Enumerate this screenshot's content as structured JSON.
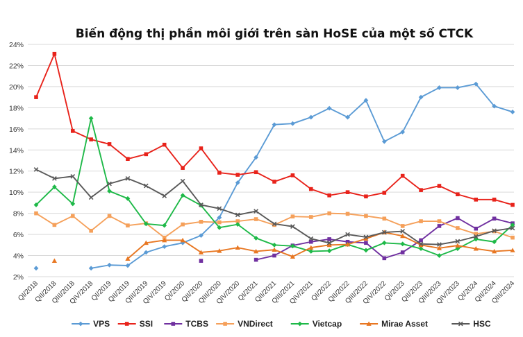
{
  "chart_data": {
    "type": "line",
    "title": "Biến động thị phần môi giới trên sàn HoSE của một số CTCK",
    "xlabel": "",
    "ylabel": "",
    "ylim": [
      2,
      24
    ],
    "yticks": [
      "2%",
      "4%",
      "6%",
      "8%",
      "10%",
      "12%",
      "14%",
      "16%",
      "18%",
      "20%",
      "22%",
      "24%"
    ],
    "grid": "horizontal",
    "legend_position": "bottom",
    "categories": [
      "QI/2018",
      "QII/2018",
      "QIII/2018",
      "QIV/2018",
      "QI/2019",
      "QII/2019",
      "QIII/2019",
      "QIV/2019",
      "QI/2020",
      "QII/2020",
      "QIII/2020",
      "QIV/2020",
      "QI/2021",
      "QII/2021",
      "QIII/2021",
      "QIV/2021",
      "QI/2022",
      "QII/2022",
      "QIII/2022",
      "QIV/2022",
      "QI/2023",
      "QII/2023",
      "QIII/2023",
      "QIV/2023",
      "QI/2024",
      "QII/2024",
      "QIII/2024"
    ],
    "series": [
      {
        "name": "VPS",
        "color": "#5B9BD5",
        "marker": "diamond",
        "values": [
          2.8,
          null,
          null,
          2.8,
          3.1,
          3.05,
          4.3,
          4.85,
          5.2,
          5.9,
          7.6,
          10.9,
          13.3,
          16.4,
          16.5,
          17.1,
          17.95,
          17.1,
          18.7,
          14.8,
          15.7,
          19.0,
          19.9,
          19.9,
          20.25,
          18.15,
          17.6
        ]
      },
      {
        "name": "SSI",
        "color": "#E8231B",
        "marker": "square",
        "values": [
          19.0,
          23.1,
          15.8,
          15.0,
          14.55,
          13.15,
          13.6,
          14.5,
          12.3,
          14.15,
          11.85,
          11.65,
          11.9,
          11.0,
          11.6,
          10.3,
          9.7,
          10.0,
          9.6,
          9.95,
          11.55,
          10.2,
          10.6,
          9.8,
          9.3,
          9.3,
          8.8
        ]
      },
      {
        "name": "TCBS",
        "color": "#7030A0",
        "marker": "square",
        "values": [
          null,
          null,
          null,
          null,
          null,
          null,
          null,
          null,
          null,
          3.5,
          null,
          null,
          3.6,
          4.0,
          4.95,
          5.3,
          5.55,
          5.3,
          5.2,
          3.75,
          4.3,
          5.45,
          6.8,
          7.55,
          6.55,
          7.5,
          7.05
        ]
      },
      {
        "name": "VNDirect",
        "color": "#F5A05A",
        "marker": "square",
        "values": [
          8.0,
          6.9,
          7.75,
          6.35,
          7.75,
          6.85,
          7.05,
          5.7,
          6.95,
          7.2,
          7.15,
          7.25,
          7.45,
          6.9,
          7.7,
          7.65,
          8.0,
          7.95,
          7.75,
          7.5,
          6.8,
          7.25,
          7.25,
          6.6,
          6.05,
          6.3,
          5.7
        ]
      },
      {
        "name": "Vietcap",
        "color": "#1EB948",
        "marker": "diamond",
        "values": [
          8.8,
          10.5,
          8.9,
          17.0,
          10.1,
          9.4,
          7.0,
          6.85,
          9.7,
          8.75,
          6.65,
          6.95,
          5.65,
          5.0,
          4.9,
          4.4,
          4.45,
          5.05,
          4.5,
          5.2,
          5.1,
          4.65,
          4.0,
          4.65,
          5.55,
          5.3,
          6.9
        ]
      },
      {
        "name": "Mirae Asset",
        "color": "#E87722",
        "marker": "triangle",
        "values": [
          null,
          3.5,
          null,
          null,
          null,
          3.7,
          5.2,
          5.45,
          5.45,
          4.3,
          4.45,
          4.75,
          4.4,
          4.55,
          3.9,
          4.75,
          5.0,
          5.05,
          5.6,
          6.2,
          5.85,
          5.0,
          4.7,
          4.95,
          4.65,
          4.4,
          4.5
        ]
      },
      {
        "name": "HSC",
        "color": "#595959",
        "marker": "cross",
        "values": [
          12.15,
          11.3,
          11.5,
          9.5,
          10.8,
          11.3,
          10.6,
          9.65,
          11.05,
          8.8,
          8.45,
          7.85,
          8.2,
          7.0,
          6.75,
          5.6,
          5.2,
          6.0,
          5.75,
          6.2,
          6.3,
          5.1,
          5.05,
          5.35,
          5.8,
          6.35,
          6.6
        ]
      }
    ]
  }
}
